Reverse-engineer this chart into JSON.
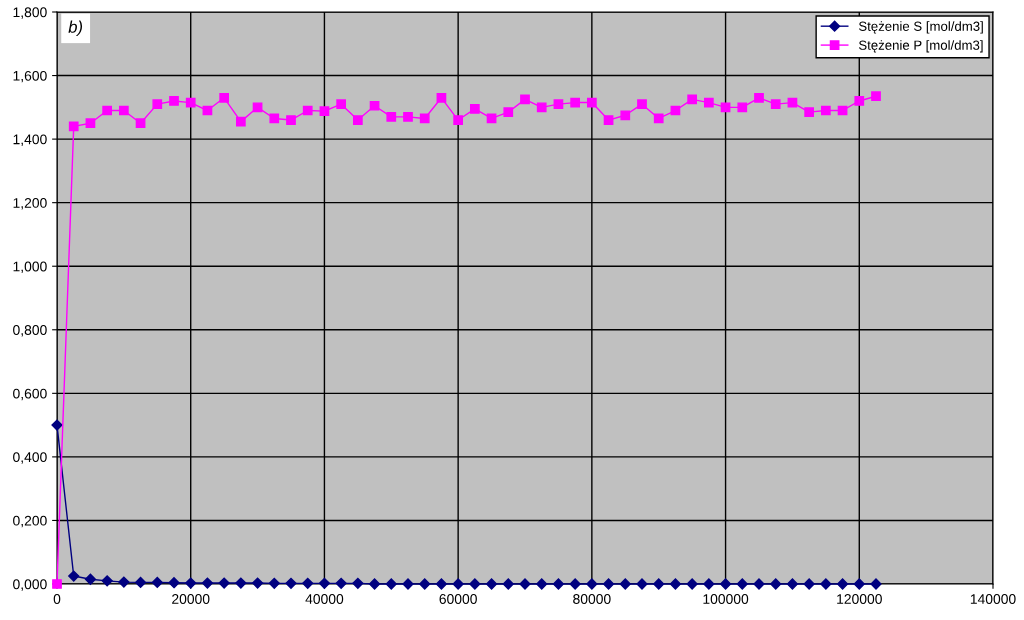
{
  "chart_data": {
    "type": "line",
    "annotations": [
      "b)"
    ],
    "x": [
      0,
      2500,
      5000,
      7500,
      10000,
      12500,
      15000,
      17500,
      20000,
      22500,
      25000,
      27500,
      30000,
      32500,
      35000,
      37500,
      40000,
      42500,
      45000,
      47500,
      50000,
      52500,
      55000,
      57500,
      60000,
      62500,
      65000,
      67500,
      70000,
      72500,
      75000,
      77500,
      80000,
      82500,
      85000,
      87500,
      90000,
      92500,
      95000,
      97500,
      100000,
      102500,
      105000,
      107500,
      110000,
      112500,
      115000,
      117500,
      120000,
      122500
    ],
    "series": [
      {
        "name": "Stężenie S [mol/dm3]",
        "color": "#000080",
        "marker": "diamond",
        "values": [
          0.5,
          0.025,
          0.015,
          0.01,
          0.006,
          0.005,
          0.005,
          0.004,
          0.003,
          0.003,
          0.003,
          0.003,
          0.003,
          0.002,
          0.002,
          0.002,
          0.002,
          0.002,
          0.002,
          0,
          0,
          0,
          0,
          0,
          0,
          0,
          0,
          0,
          0,
          0,
          0,
          0,
          0,
          0,
          0,
          0,
          0,
          0,
          0,
          0,
          0,
          0,
          0,
          0,
          0,
          0,
          0,
          0,
          0,
          0
        ]
      },
      {
        "name": "Stężenie P [mol/dm3]",
        "color": "#ff00ff",
        "marker": "square",
        "values": [
          0,
          1.44,
          1.45,
          1.49,
          1.49,
          1.45,
          1.51,
          1.52,
          1.515,
          1.49,
          1.53,
          1.455,
          1.5,
          1.465,
          1.46,
          1.49,
          1.488,
          1.51,
          1.46,
          1.505,
          1.47,
          1.47,
          1.465,
          1.53,
          1.46,
          1.495,
          1.465,
          1.485,
          1.525,
          1.5,
          1.51,
          1.515,
          1.515,
          1.46,
          1.475,
          1.51,
          1.465,
          1.49,
          1.525,
          1.515,
          1.5,
          1.5,
          1.53,
          1.51,
          1.515,
          1.485,
          1.49,
          1.49,
          1.52,
          1.535
        ]
      }
    ],
    "xlim": [
      0,
      140000
    ],
    "xticks": [
      0,
      20000,
      40000,
      60000,
      80000,
      100000,
      120000,
      140000
    ],
    "ylim": [
      0,
      1.8
    ],
    "yticks": [
      {
        "value": 0,
        "label": "0,000"
      },
      {
        "value": 0.2,
        "label": "0,200"
      },
      {
        "value": 0.4,
        "label": "0,400"
      },
      {
        "value": 0.6,
        "label": "0,600"
      },
      {
        "value": 0.8,
        "label": "0,800"
      },
      {
        "value": 1.0,
        "label": "1,000"
      },
      {
        "value": 1.2,
        "label": "1,200"
      },
      {
        "value": 1.4,
        "label": "1,400"
      },
      {
        "value": 1.6,
        "label": "1,600"
      },
      {
        "value": 1.8,
        "label": "1,800"
      }
    ],
    "grid": true,
    "legend": "top right",
    "line_style": "solid"
  }
}
